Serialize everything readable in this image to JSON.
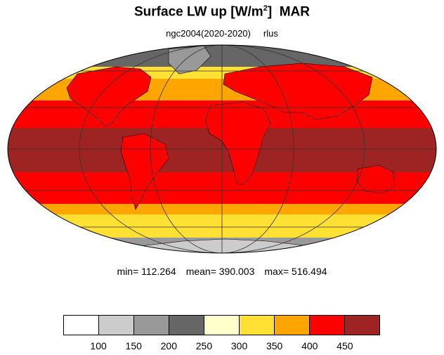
{
  "title": {
    "main": "Surface LW up [W/m",
    "sup": "2",
    "close": "]",
    "month": "MAR"
  },
  "subtitle": {
    "dataset": "ngc2004(2020-2020)",
    "variable": "rlus"
  },
  "stats": {
    "min": "min= 112.264",
    "mean": "mean= 390.003",
    "max": "max= 516.494"
  },
  "colorbar": {
    "colors": [
      "#ffffff",
      "#cccccc",
      "#999999",
      "#666666",
      "#ffffcc",
      "#ffe033",
      "#ffa500",
      "#ff0000",
      "#9e2323"
    ],
    "labels": [
      "100",
      "150",
      "200",
      "250",
      "300",
      "350",
      "400",
      "450"
    ]
  },
  "map": {
    "projection": "Mollweide",
    "zone_colors": {
      "antarctic": "#999999",
      "south_cold": "#ffe033",
      "south_mid": "#ffa500",
      "south_warm": "#ff0000",
      "tropics": "#9e2323",
      "north_warm": "#ff0000",
      "north_mid": "#ffa500",
      "north_cold": "#ffe033",
      "arctic": "#666666",
      "land": "#ff0000"
    }
  }
}
